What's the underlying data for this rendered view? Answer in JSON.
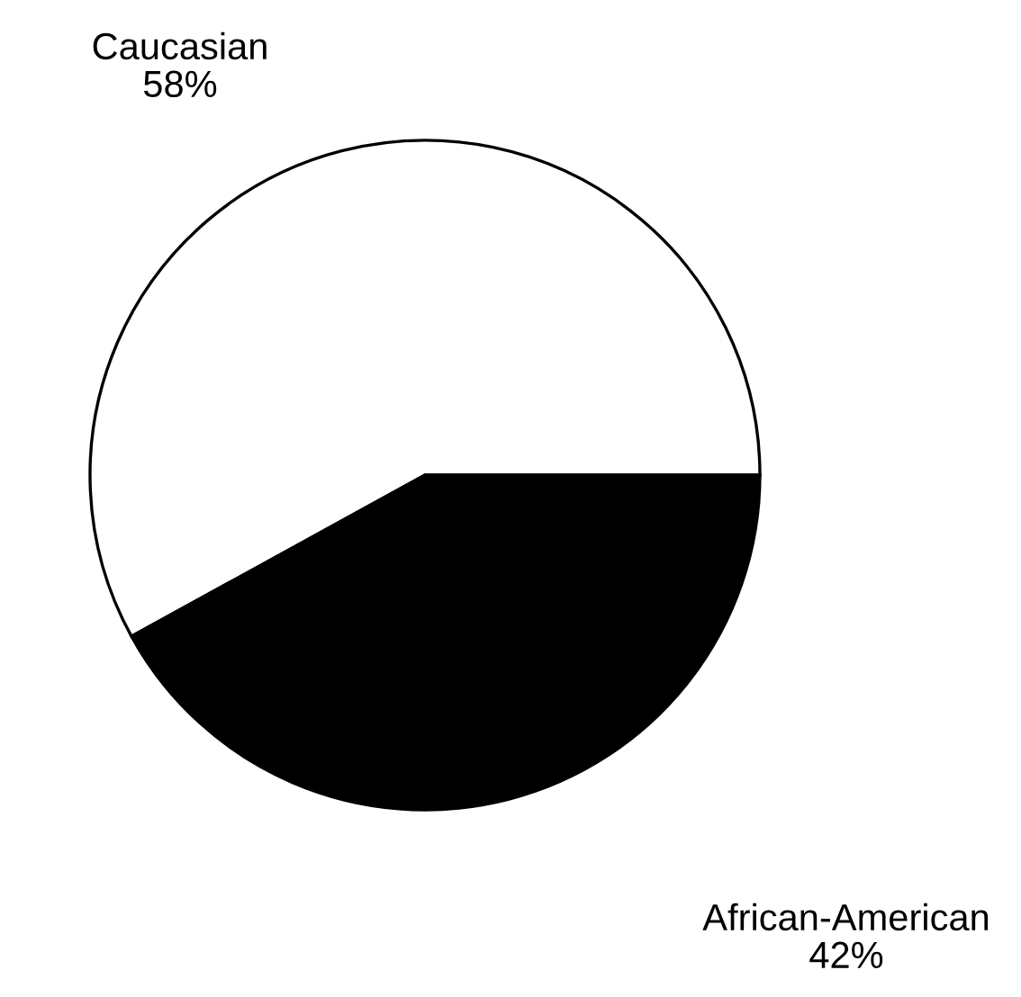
{
  "chart_data": {
    "type": "pie",
    "categories": [
      "Caucasian",
      "African-American"
    ],
    "values": [
      58,
      42
    ],
    "colors": [
      "#ffffff",
      "#000000"
    ],
    "value_labels": [
      "58%",
      "42%"
    ]
  }
}
